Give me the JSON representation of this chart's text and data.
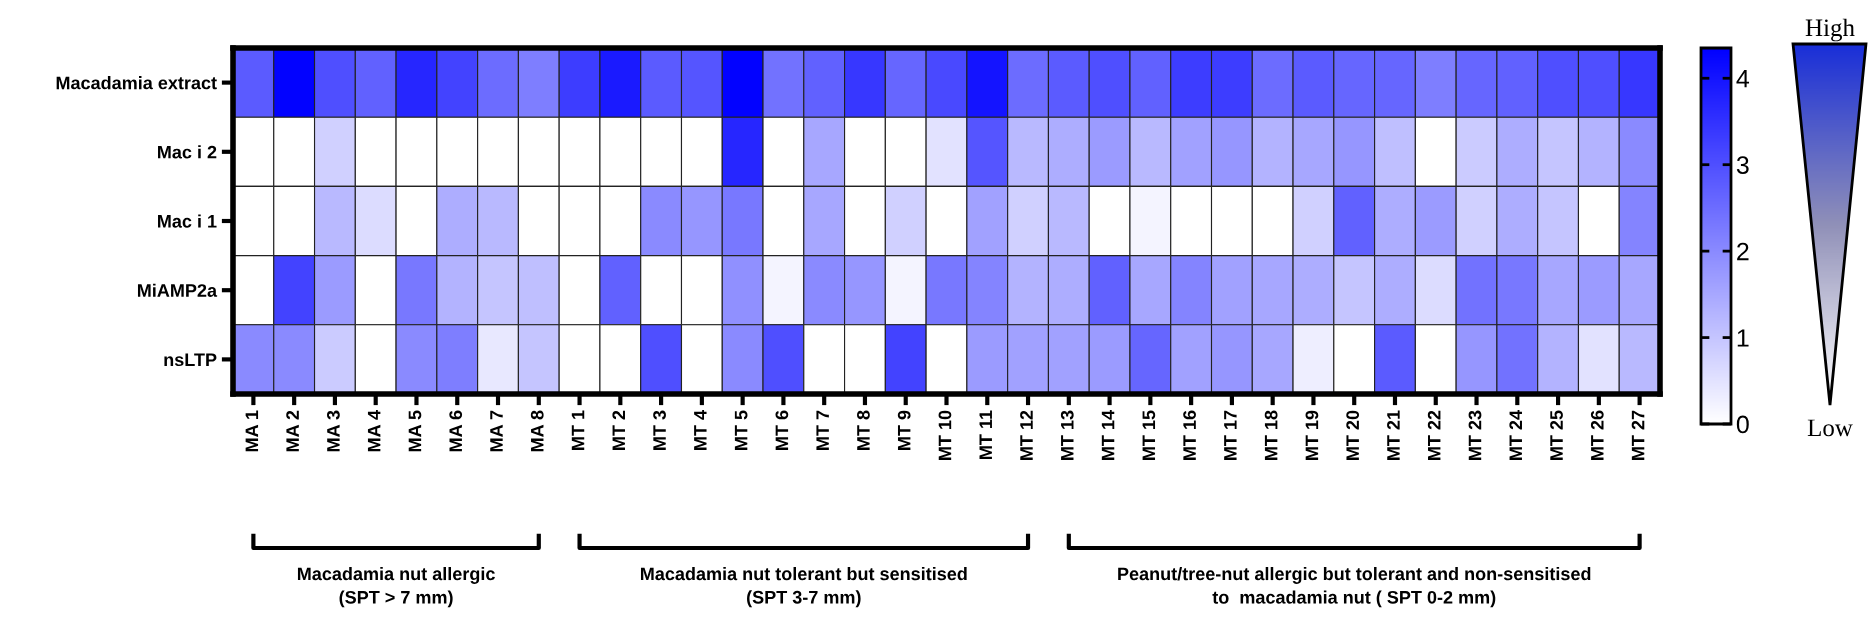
{
  "chart_data": {
    "type": "heatmap",
    "categories": [
      "MA 1",
      "MA 2",
      "MA 3",
      "MA 4",
      "MA 5",
      "MA 6",
      "MA 7",
      "MA 8",
      "MT 1",
      "MT 2",
      "MT 3",
      "MT 4",
      "MT 5",
      "MT 6",
      "MT 7",
      "MT 8",
      "MT 9",
      "MT 10",
      "MT 11",
      "MT 12",
      "MT 13",
      "MT 14",
      "MT 15",
      "MT 16",
      "MT 17",
      "MT 18",
      "MT 19",
      "MT 20",
      "MT 21",
      "MT 22",
      "MT 23",
      "MT 24",
      "MT 25",
      "MT 26",
      "MT 27"
    ],
    "y_categories": [
      "Macadamia extract",
      "Mac i 2",
      "Mac i 1",
      "MiAMP2a",
      "nsLTP"
    ],
    "cells": [
      [
        2.8,
        4.3,
        3.0,
        2.7,
        3.7,
        3.2,
        2.5,
        2.2,
        3.3,
        3.9,
        2.8,
        2.9,
        4.3,
        2.4,
        2.7,
        3.4,
        2.6,
        3.1,
        4.0,
        2.5,
        2.8,
        3.0,
        2.7,
        3.3,
        3.3,
        2.5,
        2.8,
        2.6,
        2.6,
        2.2,
        2.6,
        2.7,
        3.0,
        3.0,
        3.4
      ],
      [
        0,
        0,
        0.8,
        0,
        0,
        0,
        0,
        0,
        0,
        0,
        0,
        0,
        3.7,
        0,
        1.5,
        0,
        0,
        0.5,
        2.9,
        1.2,
        1.4,
        1.7,
        1.2,
        1.6,
        1.8,
        1.3,
        1.5,
        1.8,
        1.1,
        0,
        0.9,
        1.4,
        1.0,
        1.3,
        2.0
      ],
      [
        0,
        0,
        1.2,
        0.6,
        0,
        1.4,
        1.2,
        0,
        0,
        0,
        2.0,
        1.8,
        2.3,
        0,
        1.5,
        0,
        0.8,
        0,
        1.6,
        0.8,
        1.2,
        0,
        0.2,
        0,
        0,
        0,
        0.8,
        2.7,
        1.4,
        1.7,
        0.8,
        1.4,
        1.0,
        0,
        2.1
      ],
      [
        0,
        3.2,
        1.7,
        0,
        2.3,
        1.3,
        1.0,
        1.1,
        0,
        2.7,
        0,
        0,
        1.9,
        0.2,
        2.0,
        1.8,
        0.2,
        2.3,
        2.1,
        1.3,
        1.4,
        2.7,
        1.5,
        2.1,
        1.6,
        1.5,
        1.4,
        1.0,
        1.4,
        0.6,
        2.4,
        2.3,
        1.5,
        1.7,
        1.5
      ],
      [
        2.0,
        2.0,
        0.9,
        0,
        2.0,
        2.2,
        0.4,
        1.0,
        0,
        0,
        3.0,
        0,
        2.0,
        3.0,
        0,
        0,
        3.2,
        0,
        1.7,
        1.6,
        1.6,
        1.7,
        2.6,
        1.6,
        1.8,
        1.5,
        0.3,
        0,
        2.8,
        0,
        1.8,
        2.4,
        1.3,
        0.5,
        1.2
      ]
    ],
    "clim": [
      0,
      4.35
    ],
    "cticks": [
      0,
      1,
      2,
      3,
      4
    ],
    "annotations": [
      "Macadamia nut allergic\n(SPT > 7 mm)",
      "Macadamia nut tolerant but sensitised\n(SPT 3-7 mm)",
      "Peanut/tree-nut allergic but tolerant and non-sensitised\nto  macadamia nut ( SPT 0-2 mm)",
      "High",
      "Low"
    ]
  }
}
